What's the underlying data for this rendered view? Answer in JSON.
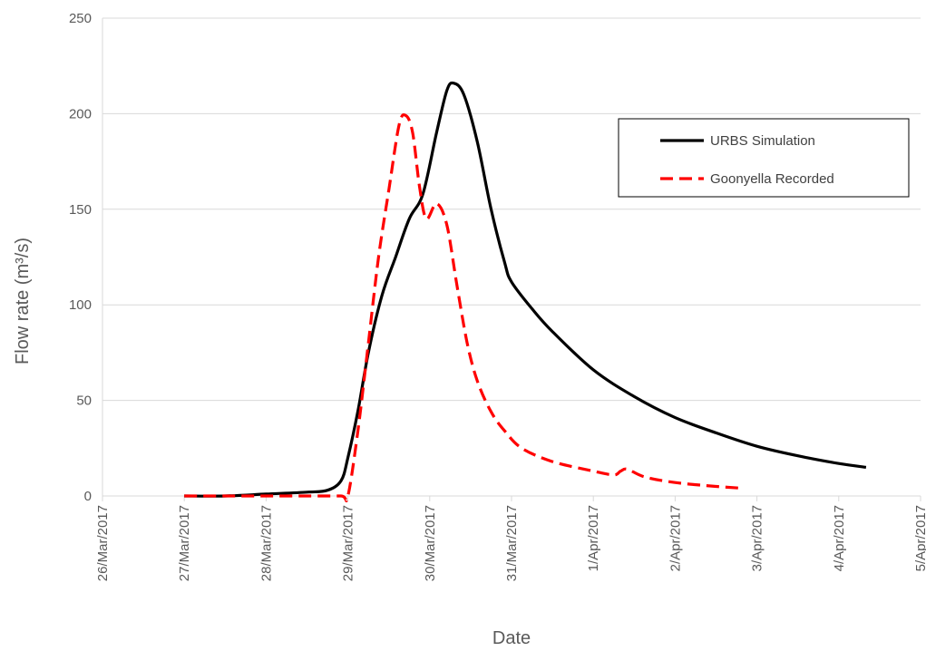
{
  "chart_data": {
    "type": "line",
    "xlabel": "Date",
    "ylabel": "Flow rate (m³/s)",
    "ylim": [
      0,
      250
    ],
    "yticks": [
      "0",
      "50",
      "100",
      "150",
      "200",
      "250"
    ],
    "xlim": [
      "26/Mar/2017",
      "5/Apr/2017"
    ],
    "xticks": [
      "26/Mar/2017",
      "27/Mar/2017",
      "28/Mar/2017",
      "29/Mar/2017",
      "30/Mar/2017",
      "31/Mar/2017",
      "1/Apr/2017",
      "2/Apr/2017",
      "3/Apr/2017",
      "4/Apr/2017",
      "5/Apr/2017"
    ],
    "grid": "horizontal",
    "legend_position": "top-right",
    "series": [
      {
        "name": "URBS Simulation",
        "color": "#000000",
        "style": "solid",
        "x": [
          "27/Mar/2017 00:00",
          "27/Mar/2017 12:00",
          "28/Mar/2017 00:00",
          "28/Mar/2017 12:00",
          "28/Mar/2017 18:00",
          "28/Mar/2017 22:00",
          "29/Mar/2017 00:00",
          "29/Mar/2017 03:00",
          "29/Mar/2017 06:00",
          "29/Mar/2017 10:00",
          "29/Mar/2017 14:00",
          "29/Mar/2017 18:00",
          "29/Mar/2017 22:00",
          "30/Mar/2017 02:00",
          "30/Mar/2017 05:00",
          "30/Mar/2017 07:00",
          "30/Mar/2017 10:00",
          "30/Mar/2017 14:00",
          "30/Mar/2017 18:00",
          "30/Mar/2017 22:00",
          "31/Mar/2017 00:00",
          "31/Mar/2017 06:00",
          "31/Mar/2017 12:00",
          "1/Apr/2017 00:00",
          "1/Apr/2017 12:00",
          "2/Apr/2017 00:00",
          "2/Apr/2017 12:00",
          "3/Apr/2017 00:00",
          "3/Apr/2017 12:00",
          "4/Apr/2017 00:00",
          "4/Apr/2017 08:00"
        ],
        "y": [
          0,
          0,
          1,
          2,
          3,
          8,
          20,
          45,
          75,
          105,
          125,
          145,
          158,
          190,
          212,
          216,
          210,
          185,
          150,
          122,
          112,
          98,
          86,
          66,
          52,
          41,
          33,
          26,
          21,
          17,
          15
        ]
      },
      {
        "name": "Goonyella Recorded",
        "color": "#ff0000",
        "style": "dashed",
        "x": [
          "27/Mar/2017 00:00",
          "27/Mar/2017 12:00",
          "28/Mar/2017 00:00",
          "28/Mar/2017 12:00",
          "28/Mar/2017 22:00",
          "29/Mar/2017 00:00",
          "29/Mar/2017 03:00",
          "29/Mar/2017 06:00",
          "29/Mar/2017 09:00",
          "29/Mar/2017 12:00",
          "29/Mar/2017 15:00",
          "29/Mar/2017 17:00",
          "29/Mar/2017 19:00",
          "29/Mar/2017 21:00",
          "29/Mar/2017 23:00",
          "30/Mar/2017 02:00",
          "30/Mar/2017 05:00",
          "30/Mar/2017 08:00",
          "30/Mar/2017 11:00",
          "30/Mar/2017 14:00",
          "30/Mar/2017 18:00",
          "30/Mar/2017 22:00",
          "31/Mar/2017 03:00",
          "31/Mar/2017 12:00",
          "1/Apr/2017 00:00",
          "1/Apr/2017 06:00",
          "1/Apr/2017 08:00",
          "1/Apr/2017 10:00",
          "1/Apr/2017 15:00",
          "2/Apr/2017 00:00",
          "2/Apr/2017 12:00",
          "2/Apr/2017 20:00"
        ],
        "y": [
          0,
          0,
          0,
          0,
          0,
          0,
          35,
          80,
          125,
          160,
          194,
          199,
          190,
          162,
          145,
          153,
          142,
          110,
          80,
          60,
          44,
          34,
          25,
          18,
          13,
          11,
          13,
          14,
          10,
          7,
          5,
          4
        ]
      }
    ]
  }
}
